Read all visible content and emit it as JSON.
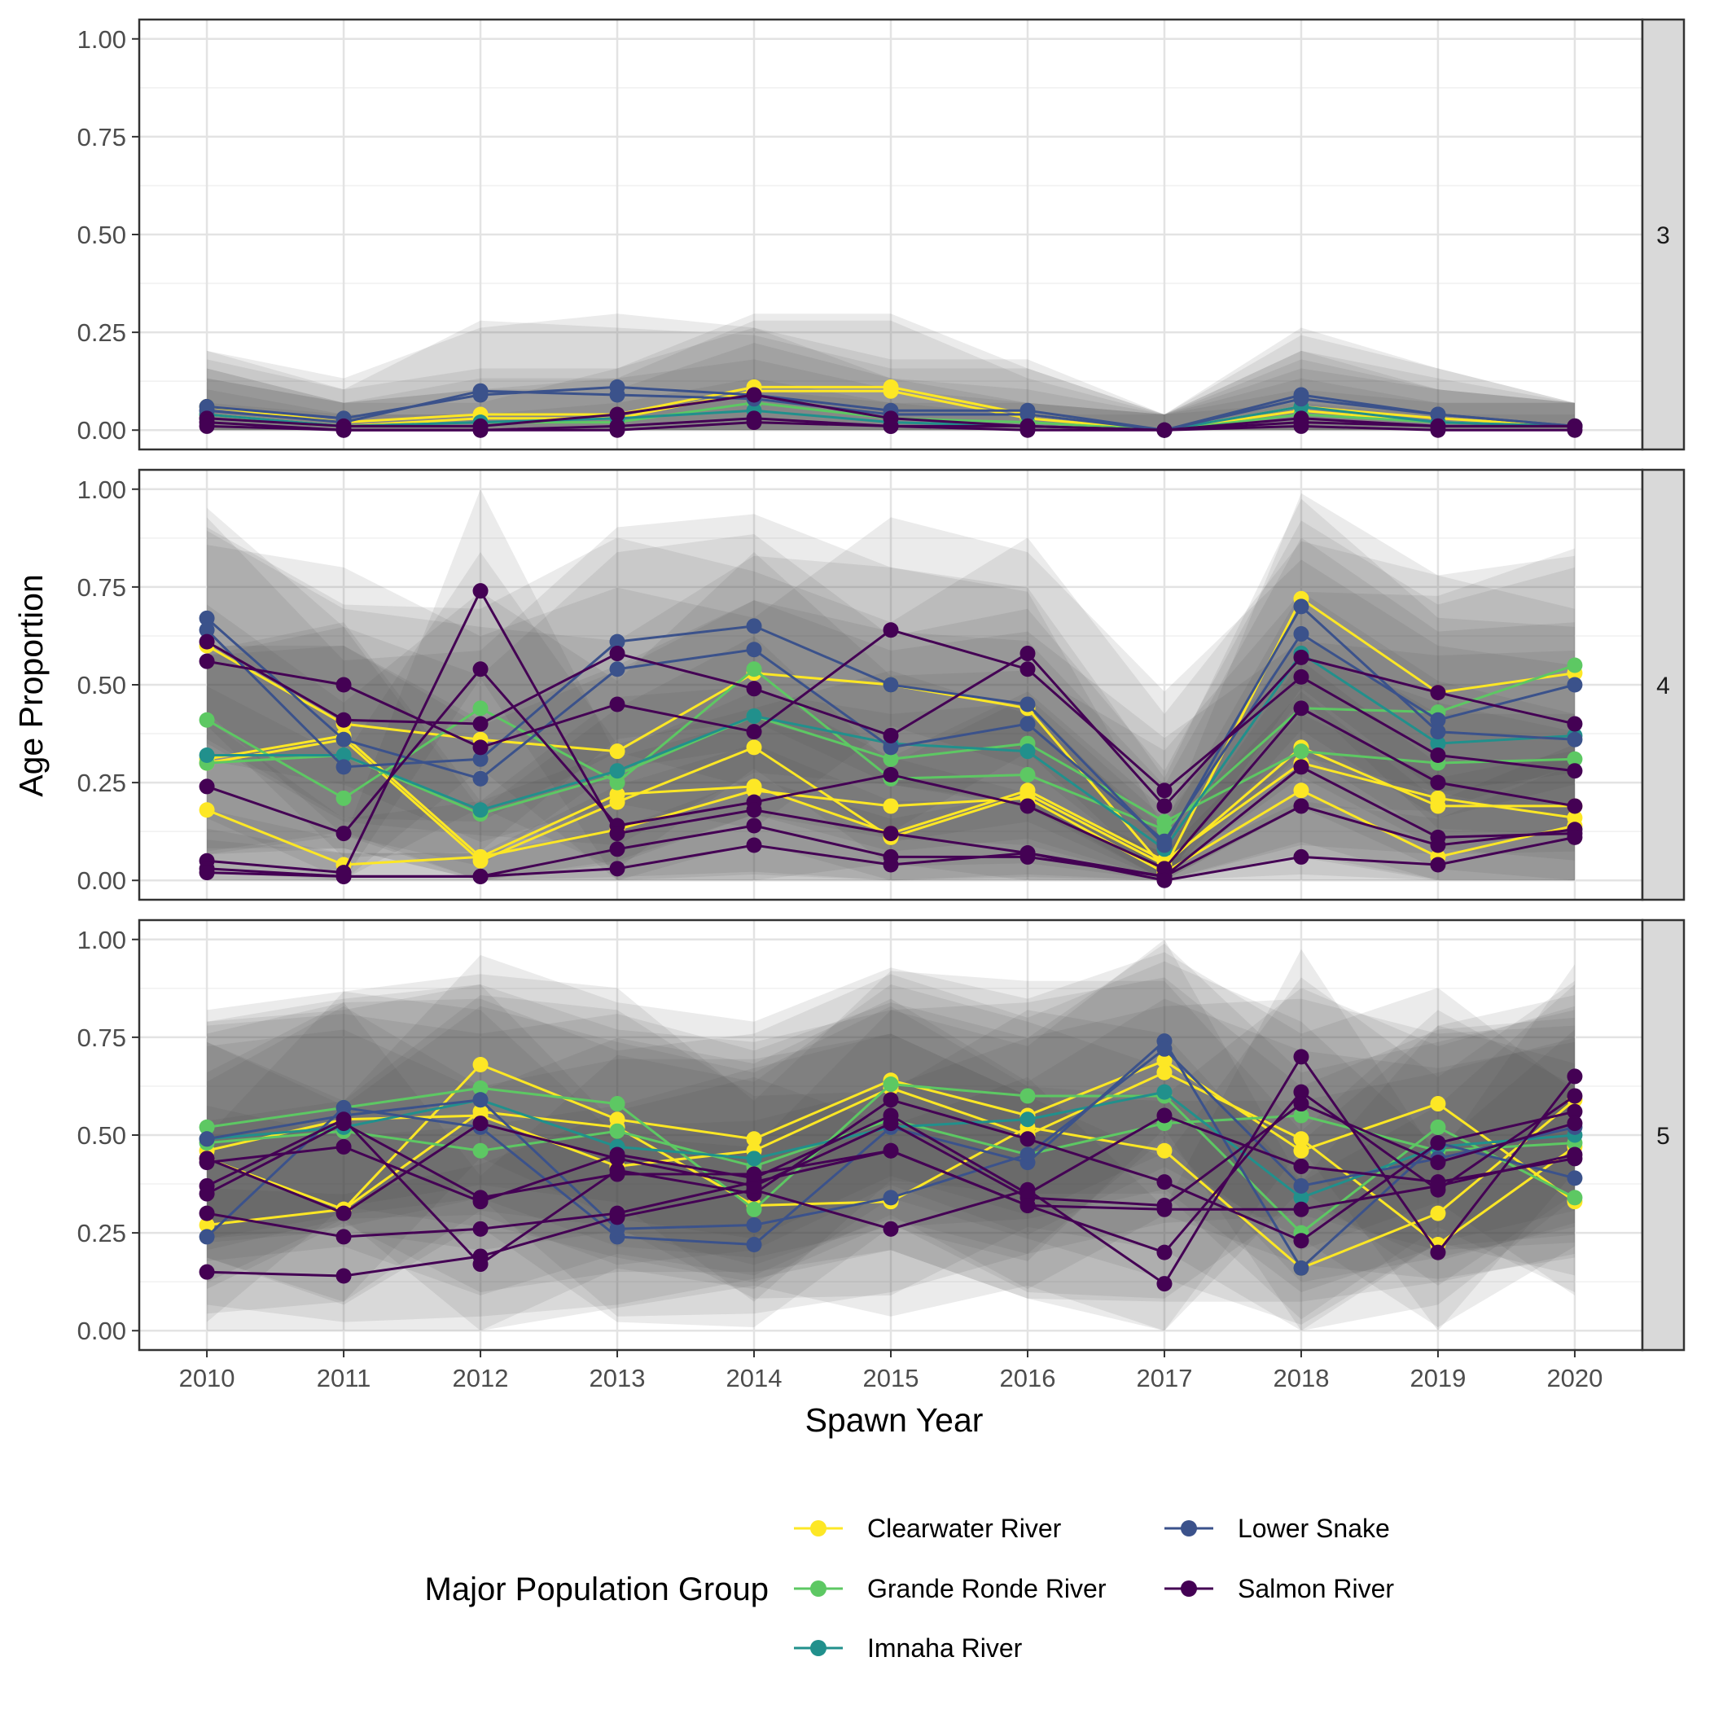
{
  "chart_data": {
    "type": "line",
    "xlabel": "Spawn Year",
    "ylabel": "Age Proportion",
    "x": [
      2010,
      2011,
      2012,
      2013,
      2014,
      2015,
      2016,
      2017,
      2018,
      2019,
      2020
    ],
    "ylim": [
      0,
      1
    ],
    "yticks": [
      "0.00",
      "0.25",
      "0.50",
      "0.75",
      "1.00"
    ],
    "grid": true,
    "legend": {
      "title": "Major Population Group",
      "position": "bottom",
      "entries": [
        {
          "name": "Clearwater River",
          "color": "#FDE725"
        },
        {
          "name": "Grande Ronde River",
          "color": "#5DC863"
        },
        {
          "name": "Imnaha River",
          "color": "#21908C"
        },
        {
          "name": "Lower Snake",
          "color": "#3B528B"
        },
        {
          "name": "Salmon River",
          "color": "#440154"
        }
      ]
    },
    "panels": [
      {
        "label": "3",
        "series": [
          {
            "group": "Clearwater River",
            "values": [
              0.06,
              0.02,
              0.04,
              0.04,
              0.11,
              0.11,
              0.04,
              0.0,
              0.06,
              0.03,
              0.01
            ]
          },
          {
            "group": "Clearwater River",
            "values": [
              0.04,
              0.01,
              0.03,
              0.03,
              0.1,
              0.1,
              0.03,
              0.0,
              0.05,
              0.02,
              0.01
            ]
          },
          {
            "group": "Grande Ronde River",
            "values": [
              0.03,
              0.01,
              0.02,
              0.02,
              0.07,
              0.03,
              0.02,
              0.0,
              0.04,
              0.02,
              0.01
            ]
          },
          {
            "group": "Imnaha River",
            "values": [
              0.04,
              0.01,
              0.02,
              0.03,
              0.05,
              0.02,
              0.01,
              0.0,
              0.06,
              0.02,
              0.01
            ]
          },
          {
            "group": "Lower Snake",
            "values": [
              0.06,
              0.03,
              0.09,
              0.11,
              0.09,
              0.05,
              0.05,
              0.0,
              0.09,
              0.04,
              0.01
            ]
          },
          {
            "group": "Lower Snake",
            "values": [
              0.05,
              0.02,
              0.1,
              0.09,
              0.08,
              0.04,
              0.04,
              0.0,
              0.08,
              0.04,
              0.01
            ]
          },
          {
            "group": "Salmon River",
            "values": [
              0.03,
              0.01,
              0.01,
              0.04,
              0.09,
              0.03,
              0.01,
              0.0,
              0.03,
              0.01,
              0.01
            ]
          },
          {
            "group": "Salmon River",
            "values": [
              0.02,
              0.0,
              0.0,
              0.01,
              0.03,
              0.01,
              0.01,
              0.0,
              0.02,
              0.01,
              0.01
            ]
          },
          {
            "group": "Salmon River",
            "values": [
              0.01,
              0.0,
              0.0,
              0.0,
              0.02,
              0.01,
              0.0,
              0.0,
              0.01,
              0.0,
              0.0
            ]
          }
        ]
      },
      {
        "label": "4",
        "series": [
          {
            "group": "Clearwater River",
            "values": [
              0.18,
              0.04,
              0.06,
              0.13,
              0.23,
              0.19,
              0.21,
              0.02,
              0.23,
              0.06,
              0.14
            ]
          },
          {
            "group": "Clearwater River",
            "values": [
              0.6,
              0.4,
              0.36,
              0.33,
              0.53,
              0.5,
              0.44,
              0.03,
              0.72,
              0.48,
              0.53
            ]
          },
          {
            "group": "Clearwater River",
            "values": [
              0.3,
              0.36,
              0.05,
              0.2,
              0.34,
              0.11,
              0.22,
              0.04,
              0.34,
              0.19,
              0.19
            ]
          },
          {
            "group": "Clearwater River",
            "values": [
              0.31,
              0.37,
              0.06,
              0.22,
              0.24,
              0.12,
              0.23,
              0.05,
              0.3,
              0.21,
              0.16
            ]
          },
          {
            "group": "Grande Ronde River",
            "values": [
              0.41,
              0.21,
              0.44,
              0.25,
              0.54,
              0.26,
              0.27,
              0.13,
              0.44,
              0.43,
              0.55
            ]
          },
          {
            "group": "Grande Ronde River",
            "values": [
              0.3,
              0.32,
              0.17,
              0.27,
              0.42,
              0.31,
              0.35,
              0.15,
              0.33,
              0.3,
              0.31
            ]
          },
          {
            "group": "Imnaha River",
            "values": [
              0.32,
              0.32,
              0.18,
              0.28,
              0.42,
              0.35,
              0.33,
              0.08,
              0.58,
              0.35,
              0.37
            ]
          },
          {
            "group": "Lower Snake",
            "values": [
              0.67,
              0.36,
              0.26,
              0.54,
              0.59,
              0.34,
              0.4,
              0.1,
              0.63,
              0.41,
              0.5
            ]
          },
          {
            "group": "Lower Snake",
            "values": [
              0.64,
              0.29,
              0.31,
              0.61,
              0.65,
              0.5,
              0.45,
              0.09,
              0.7,
              0.38,
              0.36
            ]
          },
          {
            "group": "Salmon River",
            "values": [
              0.61,
              0.41,
              0.4,
              0.58,
              0.49,
              0.37,
              0.58,
              0.19,
              0.57,
              0.48,
              0.4
            ]
          },
          {
            "group": "Salmon River",
            "values": [
              0.56,
              0.5,
              0.34,
              0.45,
              0.38,
              0.64,
              0.54,
              0.23,
              0.52,
              0.32,
              0.28
            ]
          },
          {
            "group": "Salmon River",
            "values": [
              0.24,
              0.12,
              0.54,
              0.14,
              0.2,
              0.27,
              0.19,
              0.03,
              0.44,
              0.25,
              0.19
            ]
          },
          {
            "group": "Salmon River",
            "values": [
              0.05,
              0.02,
              0.74,
              0.12,
              0.18,
              0.12,
              0.07,
              0.01,
              0.29,
              0.11,
              0.12
            ]
          },
          {
            "group": "Salmon River",
            "values": [
              0.03,
              0.01,
              0.01,
              0.08,
              0.14,
              0.06,
              0.06,
              0.01,
              0.19,
              0.09,
              0.13
            ]
          },
          {
            "group": "Salmon River",
            "values": [
              0.02,
              0.01,
              0.01,
              0.03,
              0.09,
              0.04,
              0.07,
              0.0,
              0.06,
              0.04,
              0.11
            ]
          }
        ]
      },
      {
        "label": "5",
        "series": [
          {
            "group": "Clearwater River",
            "values": [
              0.27,
              0.31,
              0.68,
              0.54,
              0.49,
              0.64,
              0.55,
              0.69,
              0.46,
              0.58,
              0.33
            ]
          },
          {
            "group": "Clearwater River",
            "values": [
              0.44,
              0.31,
              0.56,
              0.52,
              0.32,
              0.33,
              0.52,
              0.46,
              0.16,
              0.3,
              0.59
            ]
          },
          {
            "group": "Clearwater River",
            "values": [
              0.46,
              0.54,
              0.55,
              0.42,
              0.46,
              0.62,
              0.5,
              0.66,
              0.49,
              0.22,
              0.47
            ]
          },
          {
            "group": "Grande Ronde River",
            "values": [
              0.52,
              0.57,
              0.62,
              0.58,
              0.31,
              0.63,
              0.6,
              0.6,
              0.25,
              0.52,
              0.34
            ]
          },
          {
            "group": "Grande Ronde River",
            "values": [
              0.48,
              0.51,
              0.46,
              0.51,
              0.42,
              0.54,
              0.45,
              0.53,
              0.55,
              0.46,
              0.48
            ]
          },
          {
            "group": "Imnaha River",
            "values": [
              0.49,
              0.52,
              0.59,
              0.47,
              0.44,
              0.52,
              0.54,
              0.61,
              0.34,
              0.47,
              0.5
            ]
          },
          {
            "group": "Lower Snake",
            "values": [
              0.24,
              0.57,
              0.52,
              0.24,
              0.22,
              0.52,
              0.43,
              0.74,
              0.16,
              0.48,
              0.39
            ]
          },
          {
            "group": "Lower Snake",
            "values": [
              0.49,
              0.55,
              0.59,
              0.26,
              0.27,
              0.34,
              0.45,
              0.72,
              0.37,
              0.44,
              0.52
            ]
          },
          {
            "group": "Salmon River",
            "values": [
              0.15,
              0.14,
              0.19,
              0.29,
              0.36,
              0.26,
              0.36,
              0.12,
              0.7,
              0.2,
              0.65
            ]
          },
          {
            "group": "Salmon River",
            "values": [
              0.3,
              0.24,
              0.26,
              0.3,
              0.38,
              0.46,
              0.32,
              0.2,
              0.61,
              0.36,
              0.6
            ]
          },
          {
            "group": "Salmon River",
            "values": [
              0.37,
              0.54,
              0.17,
              0.41,
              0.35,
              0.59,
              0.49,
              0.38,
              0.23,
              0.48,
              0.56
            ]
          },
          {
            "group": "Salmon River",
            "values": [
              0.43,
              0.47,
              0.33,
              0.45,
              0.39,
              0.55,
              0.35,
              0.55,
              0.42,
              0.38,
              0.44
            ]
          },
          {
            "group": "Salmon River",
            "values": [
              0.44,
              0.3,
              0.53,
              0.44,
              0.37,
              0.53,
              0.34,
              0.32,
              0.58,
              0.43,
              0.53
            ]
          },
          {
            "group": "Salmon River",
            "values": [
              0.35,
              0.53,
              0.34,
              0.4,
              0.4,
              0.46,
              0.32,
              0.31,
              0.31,
              0.37,
              0.45
            ]
          }
        ]
      }
    ]
  }
}
